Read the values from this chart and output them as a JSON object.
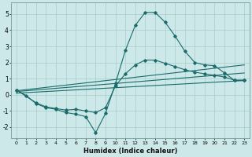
{
  "xlabel": "Humidex (Indice chaleur)",
  "bg_color": "#cce8e8",
  "line_color": "#1a6b6b",
  "grid_color": "#aacccc",
  "xlim": [
    -0.5,
    23.5
  ],
  "ylim": [
    -2.7,
    5.7
  ],
  "xticks": [
    0,
    1,
    2,
    3,
    4,
    5,
    6,
    7,
    8,
    9,
    10,
    11,
    12,
    13,
    14,
    15,
    16,
    17,
    18,
    19,
    20,
    21,
    22,
    23
  ],
  "yticks": [
    -2,
    -1,
    0,
    1,
    2,
    3,
    4,
    5
  ],
  "line1_x": [
    0,
    1,
    2,
    3,
    4,
    5,
    6,
    7,
    8,
    9,
    10,
    11,
    12,
    13,
    14,
    15,
    16,
    17,
    18,
    19,
    20,
    21,
    22,
    23
  ],
  "line1_y": [
    0.3,
    -0.05,
    -0.55,
    -0.8,
    -0.9,
    -1.1,
    -1.2,
    -1.35,
    -2.35,
    -1.15,
    0.7,
    2.75,
    4.3,
    5.1,
    5.1,
    4.5,
    3.65,
    2.7,
    2.0,
    1.85,
    1.8,
    1.35,
    0.9,
    0.9
  ],
  "line2_x": [
    0,
    2,
    3,
    4,
    5,
    6,
    7,
    8,
    9,
    10,
    11,
    12,
    13,
    14,
    15,
    16,
    17,
    18,
    19,
    20,
    21,
    22,
    23
  ],
  "line2_y": [
    0.3,
    -0.5,
    -0.75,
    -0.85,
    -0.95,
    -0.9,
    -1.0,
    -1.1,
    -0.8,
    0.55,
    1.3,
    1.85,
    2.15,
    2.15,
    1.95,
    1.75,
    1.55,
    1.4,
    1.3,
    1.2,
    1.1,
    0.9,
    0.9
  ],
  "line3_x": [
    0,
    23
  ],
  "line3_y": [
    0.25,
    1.85
  ],
  "line4_x": [
    0,
    23
  ],
  "line4_y": [
    0.2,
    1.35
  ],
  "line5_x": [
    0,
    23
  ],
  "line5_y": [
    0.1,
    0.88
  ]
}
